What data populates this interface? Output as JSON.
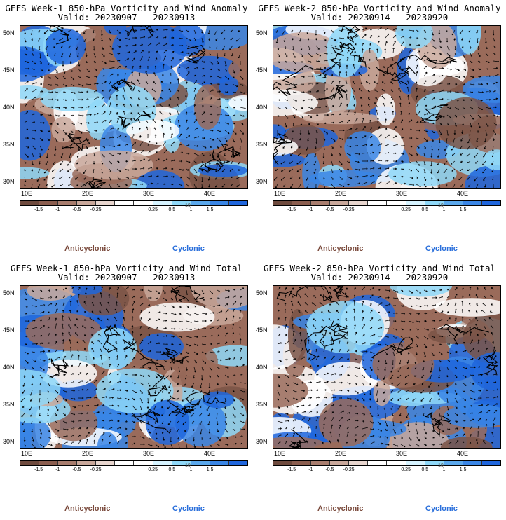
{
  "panels": [
    {
      "title1": "GEFS Week-1 850-hPa Vorticity and Wind Anomaly",
      "title2": "Valid: 20230907 - 20230913",
      "scale": "10"
    },
    {
      "title1": "GEFS Week-2 850-hPa Vorticity and Wind Anomaly",
      "title2": "Valid: 20230914 - 20230920",
      "scale": "10"
    },
    {
      "title1": "GEFS Week-1 850-hPa Vorticity and Wind Total",
      "title2": "Valid: 20230907 - 20230913",
      "scale": "10"
    },
    {
      "title1": "GEFS Week-2 850-hPa Vorticity and Wind Total",
      "title2": "Valid: 20230914 - 20230920",
      "scale": "10"
    }
  ],
  "axes": {
    "lat_labels": [
      "50N",
      "45N",
      "40N",
      "35N",
      "30N"
    ],
    "lon_labels": [
      "10E",
      "20E",
      "30E",
      "40E"
    ]
  },
  "colorbar": {
    "labels": [
      "-1.5",
      "-1",
      "-0.5",
      "-0.25",
      "0.25",
      "0.5",
      "1",
      "1.5"
    ],
    "colors": [
      "#6e4a3d",
      "#8b5e4f",
      "#a87d6e",
      "#c9a89b",
      "#e8d6cf",
      "#ffffff",
      "#ffffff",
      "#d6f3ff",
      "#8fd8f8",
      "#5ba8ec",
      "#3a86e6",
      "#1f66dd"
    ]
  },
  "legend": {
    "anticyclonic": "Anticyclonic",
    "cyclonic": "Cyclonic"
  },
  "map_colors": {
    "brown_dark": "#7a5346",
    "brown_mid": "#9a6b5b",
    "brown_light": "#c9a89b",
    "blue_dark": "#1f66dd",
    "blue_mid": "#3a86e6",
    "blue_light": "#8fd8f8",
    "white": "#ffffff"
  }
}
